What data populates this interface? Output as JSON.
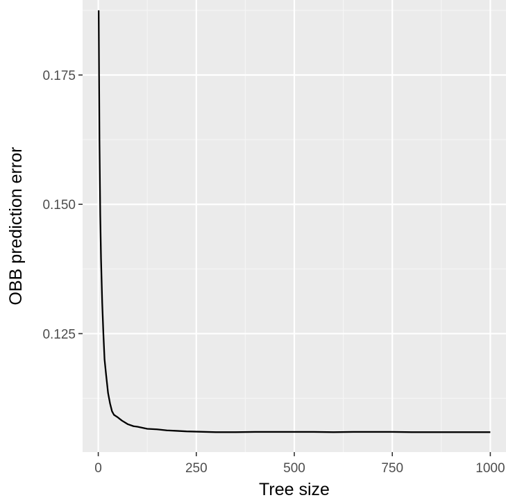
{
  "chart_data": {
    "type": "line",
    "title": "",
    "xlabel": "Tree size",
    "ylabel": "OBB prediction error",
    "xlim": [
      -40,
      1040
    ],
    "ylim": [
      0.1021,
      0.1895
    ],
    "x_ticks": [
      0,
      250,
      500,
      750,
      1000
    ],
    "x_tick_labels": [
      "0",
      "250",
      "500",
      "750",
      "1000"
    ],
    "y_ticks": [
      0.125,
      0.15,
      0.175
    ],
    "y_tick_labels": [
      "0.125",
      "0.150",
      "0.175"
    ],
    "x_minor_ticks": [
      125,
      375,
      625,
      875
    ],
    "y_minor_ticks": [
      0.1125,
      0.1375,
      0.1625,
      0.1875
    ],
    "grid": true,
    "legend": "none",
    "series": [
      {
        "name": "",
        "color": "#000000",
        "x": [
          1,
          2,
          3,
          5,
          7,
          10,
          13,
          16,
          20,
          25,
          30,
          35,
          40,
          50,
          60,
          75,
          90,
          100,
          125,
          150,
          175,
          200,
          225,
          250,
          275,
          300,
          350,
          400,
          450,
          500,
          550,
          600,
          650,
          700,
          750,
          800,
          850,
          900,
          950,
          1000
        ],
        "y": [
          0.1875,
          0.175,
          0.1625,
          0.148,
          0.1395,
          0.131,
          0.125,
          0.12,
          0.117,
          0.1135,
          0.1115,
          0.11,
          0.1093,
          0.1088,
          0.1082,
          0.1075,
          0.1071,
          0.107,
          0.1066,
          0.1065,
          0.1063,
          0.1062,
          0.1061,
          0.10605,
          0.106,
          0.10595,
          0.10595,
          0.106,
          0.106,
          0.106,
          0.106,
          0.10595,
          0.106,
          0.106,
          0.106,
          0.10595,
          0.10595,
          0.10595,
          0.10595,
          0.10595
        ]
      }
    ],
    "colors": {
      "panel_background": "#ebebeb",
      "grid_major": "#ffffff",
      "grid_minor": "#f5f5f5",
      "tick_text": "#4d4d4d",
      "axis_title": "#000000",
      "line": "#000000"
    }
  }
}
